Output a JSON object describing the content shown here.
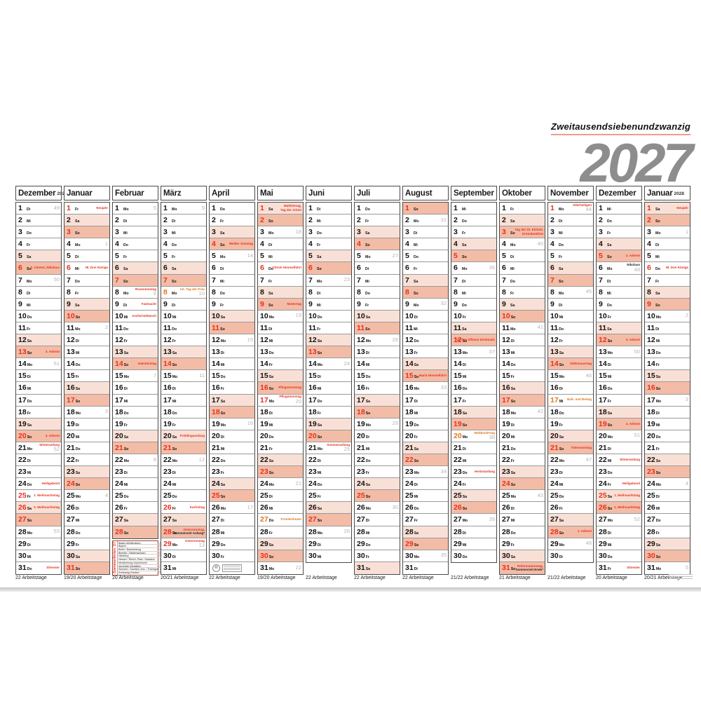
{
  "title": {
    "word": "Zweitausendsiebenundzwanzig",
    "year": "2027"
  },
  "colors": {
    "red": "#e5311d",
    "orange": "#e0761c",
    "sunday_bg": "#f3bca7",
    "saturday_bg": "#f9e0d6",
    "title_gray": "#8d8d8d",
    "underline": "#f29a8b",
    "week_gray": "#b7b3b0"
  },
  "weekdays": [
    "Mo",
    "Di",
    "Mi",
    "Do",
    "Fr",
    "Sa",
    "So"
  ],
  "legend": {
    "label": "Sommerferien '27",
    "rows": [
      {
        "state": "Baden-Württemberg",
        "dates": "29.07.–11.09."
      },
      {
        "state": "Bayern",
        "dates": "02.08.–13.09."
      },
      {
        "state": "Berlin / Brandenburg",
        "dates": "01.07.–14.08."
      },
      {
        "state": "Bremen / Niedersachsen",
        "dates": "08.07.–18.08."
      },
      {
        "state": "Hamburg",
        "dates": "01.07.–10.08."
      },
      {
        "state": "Hessen / Rheinl.-Pfalz / Saarland",
        "dates": "12.07.–20.08."
      },
      {
        "state": "Mecklenburg-Vorpommern",
        "dates": "12.07.–21.08."
      },
      {
        "state": "Nordrhein-Westfalen",
        "dates": "28.06.–10.08."
      },
      {
        "state": "Sachsen / Sachsen-Anh. / Thüringen",
        "dates": "10.07.–20.08."
      },
      {
        "state": "Schleswig-Holstein",
        "dates": "05.07.–14.08."
      }
    ]
  },
  "icons": {
    "eco_circle": "recycle-label",
    "eco_box": "print-certificate-label"
  },
  "months": [
    {
      "name": "Dezember",
      "year": "2026",
      "start": 1,
      "days": 31,
      "weeks": {
        "1": 49,
        "7": 50,
        "14": 51,
        "21": 52,
        "28": 53
      },
      "notes": {
        "6": {
          "lines": [
            "2. Advent, Nikolaus"
          ]
        },
        "13": {
          "lines": [
            "3. Advent"
          ]
        },
        "20": {
          "lines": [
            "4. Advent"
          ]
        },
        "21": {
          "lines": [
            "Winteranfang"
          ]
        },
        "24": {
          "lines": [
            "Heiligabend"
          ]
        },
        "25": {
          "lines": [
            "1. Weihnachtstag"
          ],
          "hl": true
        },
        "26": {
          "lines": [
            "2. Weihnachtstag"
          ],
          "hl": true
        },
        "31": {
          "lines": [
            "Silvester"
          ]
        }
      },
      "arbeitstage": "22 Arbeitstage"
    },
    {
      "name": "Januar",
      "year": "",
      "start": 4,
      "days": 31,
      "weeks": {
        "4": 1,
        "11": 2,
        "18": 3,
        "25": 4
      },
      "notes": {
        "1": {
          "lines": [
            "Neujahr"
          ],
          "hl": true
        },
        "6": {
          "lines": [
            "Hl. Drei Könige"
          ],
          "hl": true
        }
      },
      "arbeitstage": "19/20 Arbeitstage"
    },
    {
      "name": "Februar",
      "year": "",
      "start": 0,
      "days": 28,
      "legend": true,
      "weeks": {
        "1": 5,
        "8": 6,
        "15": 7,
        "22": 8
      },
      "notes": {
        "8": {
          "lines": [
            "Rosenmontag"
          ]
        },
        "9": {
          "lines": [
            "Fastnacht"
          ]
        },
        "10": {
          "lines": [
            "Aschermittwoch"
          ]
        },
        "14": {
          "lines": [
            "Valentinstag"
          ]
        }
      },
      "arbeitstage": "20 Arbeitstage"
    },
    {
      "name": "März",
      "year": "",
      "start": 0,
      "days": 31,
      "weeks": {
        "1": 9,
        "8": 10,
        "15": 11,
        "22": 12,
        "29": 13
      },
      "notes": {
        "8": {
          "lines": [
            "Int. Tag der Frau"
          ],
          "hl": true,
          "tone": "orange"
        },
        "20": {
          "lines": [
            "Frühlingsanfang"
          ]
        },
        "26": {
          "lines": [
            "Karfreitag"
          ],
          "hl": true
        },
        "28": {
          "lines": [
            "Ostersonntag,",
            "Sommerzeit Anfang*"
          ],
          "line2black": true
        },
        "29": {
          "lines": [
            "Ostermontag"
          ],
          "hl": true
        }
      },
      "arbeitstage": "20/21 Arbeitstage"
    },
    {
      "name": "April",
      "year": "",
      "start": 3,
      "days": 30,
      "eco": true,
      "weeks": {
        "5": 14,
        "12": 15,
        "19": 16,
        "26": 17
      },
      "notes": {
        "4": {
          "lines": [
            "Weißer Sonntag"
          ]
        }
      },
      "arbeitstage": "22 Arbeitstage"
    },
    {
      "name": "Mai",
      "year": "",
      "start": 5,
      "days": 31,
      "weeks": {
        "3": 18,
        "10": 19,
        "17": 20,
        "24": 21,
        "31": 22
      },
      "notes": {
        "1": {
          "lines": [
            "Maifeiertag,",
            "Tag der Arbeit"
          ],
          "hl": true
        },
        "6": {
          "lines": [
            "Christi Himmelfahrt"
          ],
          "hl": true
        },
        "9": {
          "lines": [
            "Muttertag"
          ]
        },
        "16": {
          "lines": [
            "Pfingstsonntag"
          ]
        },
        "17": {
          "lines": [
            "Pfingstmontag"
          ],
          "hl": true
        },
        "27": {
          "lines": [
            "Fronleichnam"
          ],
          "hl": true,
          "tone": "orange"
        }
      },
      "arbeitstage": "19/20 Arbeitstage"
    },
    {
      "name": "Juni",
      "year": "",
      "start": 1,
      "days": 30,
      "weeks": {
        "7": 23,
        "14": 24,
        "21": 25,
        "28": 26
      },
      "notes": {
        "21": {
          "lines": [
            "Sommeranfang"
          ]
        }
      },
      "arbeitstage": "22 Arbeitstage"
    },
    {
      "name": "Juli",
      "year": "",
      "start": 3,
      "days": 31,
      "weeks": {
        "5": 27,
        "12": 28,
        "19": 29,
        "26": 30
      },
      "notes": {},
      "arbeitstage": "22 Arbeitstage"
    },
    {
      "name": "August",
      "year": "",
      "start": 6,
      "days": 31,
      "weeks": {
        "2": 31,
        "9": 32,
        "16": 33,
        "23": 34,
        "30": 35
      },
      "notes": {
        "15": {
          "lines": [
            "Mariä Himmelfahrt"
          ]
        }
      },
      "arbeitstage": "22 Arbeitstage"
    },
    {
      "name": "September",
      "year": "",
      "start": 2,
      "days": 30,
      "weeks": {
        "6": 36,
        "13": 37,
        "20": 38,
        "27": 39
      },
      "notes": {
        "12": {
          "lines": [
            "Tag des offenen Denkmals"
          ]
        },
        "20": {
          "lines": [
            "Weltkindertag"
          ],
          "hl": true,
          "tone": "orange"
        },
        "23": {
          "lines": [
            "Herbstanfang"
          ]
        }
      },
      "arbeitstage": "21/22 Arbeitstage"
    },
    {
      "name": "Oktober",
      "year": "",
      "start": 4,
      "days": 31,
      "weeks": {
        "4": 40,
        "11": 41,
        "18": 42,
        "25": 43
      },
      "notes": {
        "3": {
          "lines": [
            "Tag der Dt. Einheit,",
            "Erntedankfest"
          ]
        },
        "31": {
          "lines": [
            "Reformationstag,",
            "Sommerzeit Ende*"
          ],
          "line2black": true
        }
      },
      "arbeitstage": "21 Arbeitstage"
    },
    {
      "name": "November",
      "year": "",
      "start": 0,
      "days": 30,
      "weeks": {
        "1": 44,
        "8": 45,
        "15": 46,
        "22": 47,
        "29": 48
      },
      "notes": {
        "1": {
          "lines": [
            "Allerheiligen"
          ],
          "hl": true
        },
        "14": {
          "lines": [
            "Volkstrauertag"
          ]
        },
        "17": {
          "lines": [
            "Buß- und Bettag"
          ],
          "hl": true,
          "tone": "orange"
        },
        "21": {
          "lines": [
            "Totensonntag"
          ]
        },
        "28": {
          "lines": [
            "1. Advent"
          ]
        }
      },
      "arbeitstage": "21/22 Arbeitstage"
    },
    {
      "name": "Dezember",
      "year": "",
      "start": 2,
      "days": 31,
      "weeks": {
        "6": 49,
        "13": 50,
        "20": 51,
        "27": 52
      },
      "notes": {
        "5": {
          "lines": [
            "2. Advent"
          ]
        },
        "6": {
          "lines": [
            "Nikolaus"
          ],
          "tone": "black"
        },
        "12": {
          "lines": [
            "3. Advent"
          ]
        },
        "19": {
          "lines": [
            "4. Advent"
          ]
        },
        "22": {
          "lines": [
            "Winteranfang"
          ]
        },
        "24": {
          "lines": [
            "Heiligabend"
          ]
        },
        "25": {
          "lines": [
            "1. Weihnachtstag"
          ],
          "hl": true
        },
        "26": {
          "lines": [
            "2. Weihnachtstag"
          ],
          "hl": true
        },
        "31": {
          "lines": [
            "Silvester"
          ]
        }
      },
      "arbeitstage": "20 Arbeitstage"
    },
    {
      "name": "Januar",
      "year": "2028",
      "start": 5,
      "days": 31,
      "weeks": {
        "3": 1,
        "10": 2,
        "17": 3,
        "24": 4,
        "31": 5
      },
      "notes": {
        "1": {
          "lines": [
            "Neujahr"
          ],
          "hl": true
        },
        "6": {
          "lines": [
            "Hl. Drei Könige"
          ],
          "hl": true
        }
      },
      "arbeitstage": "20/21 Arbeitstage"
    }
  ]
}
